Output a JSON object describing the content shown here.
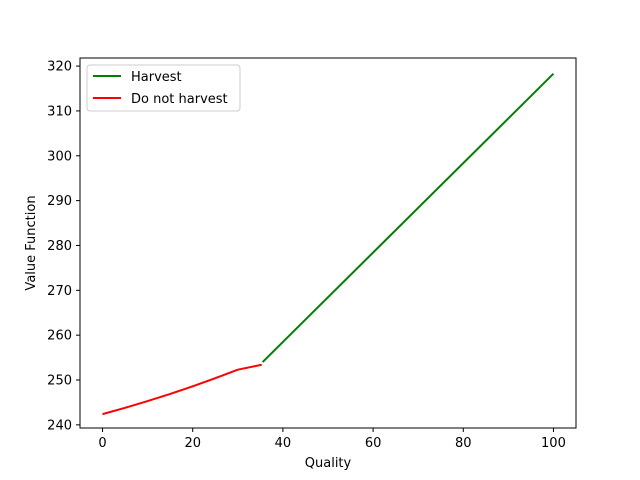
{
  "chart_data": {
    "type": "line",
    "title": "",
    "xlabel": "Quality",
    "ylabel": "Value Function",
    "xlim": [
      -5,
      105
    ],
    "ylim": [
      239.3,
      321.8
    ],
    "xticks": [
      0,
      20,
      40,
      60,
      80,
      100
    ],
    "yticks": [
      240,
      250,
      260,
      270,
      280,
      290,
      300,
      310,
      320
    ],
    "grid": false,
    "legend_position": "upper-left",
    "series": [
      {
        "name": "Harvest",
        "color": "#008000",
        "x": [
          35.5,
          100
        ],
        "y": [
          254.0,
          318.3
        ]
      },
      {
        "name": "Do not harvest",
        "color": "#ff0000",
        "x": [
          0,
          5,
          10,
          15,
          20,
          25,
          30,
          35.3
        ],
        "y": [
          242.4,
          243.8,
          245.3,
          246.9,
          248.6,
          250.4,
          252.3,
          253.4
        ]
      }
    ]
  }
}
